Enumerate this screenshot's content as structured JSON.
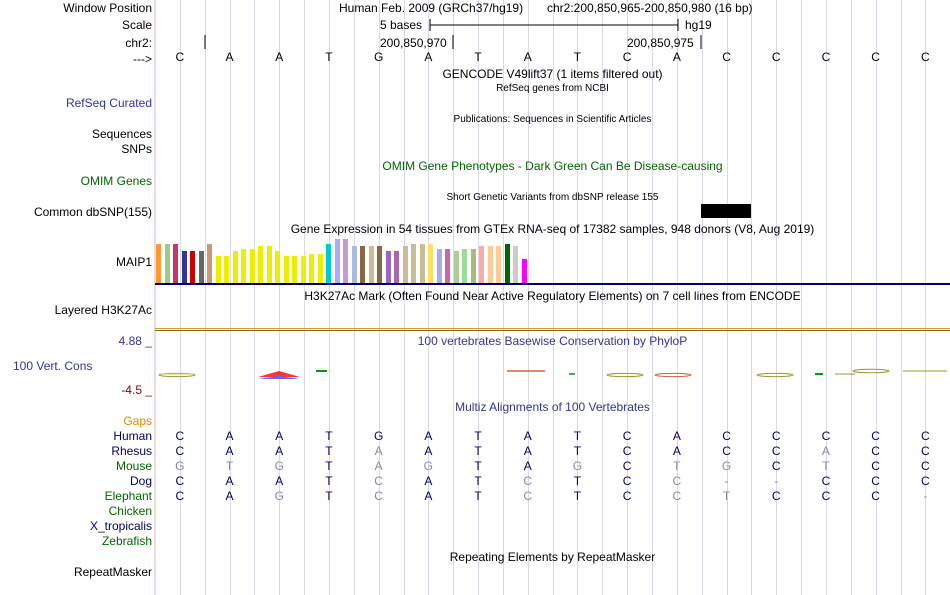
{
  "header": {
    "window_position_label": "Window Position",
    "assembly": "Human Feb. 2009 (GRCh37/hg19)",
    "position": "chr2:200,850,965-200,850,980 (16 bp)",
    "scale_label": "Scale",
    "scale_bases": "5 bases",
    "scale_db": "hg19",
    "chrom_label": "chr2:",
    "coord1": "200,850,970",
    "coord2": "200,850,975",
    "strand_label": "--->"
  },
  "reference_bases": [
    "C",
    "A",
    "A",
    "T",
    "G",
    "A",
    "T",
    "A",
    "T",
    "C",
    "A",
    "C",
    "C",
    "C",
    "C",
    "C"
  ],
  "tracks": {
    "gencode_title": "GENCODE V49lift37 (1 items filtered out)",
    "refseq_subtitle": "RefSeq genes from NCBI",
    "refseq_label": "RefSeq Curated",
    "publications_subtitle": "Publications: Sequences in Scientific Articles",
    "sequences_label": "Sequences",
    "snps_label": "SNPs",
    "omim_title": "OMIM Gene Phenotypes - Dark Green Can Be Disease-causing",
    "omim_label": "OMIM Genes",
    "dbsnp_subtitle": "Short Genetic Variants from dbSNP release 155",
    "dbsnp_label": "Common dbSNP(155)",
    "gtex_title": "Gene Expression in 54 tissues from GTEx RNA-seq of 17382 samples, 948 donors (V8, Aug 2019)",
    "gtex_gene_label": "MAIP1",
    "h3k27ac_title": "H3K27Ac Mark (Often Found Near Active Regulatory Elements) on 7 cell lines from ENCODE",
    "h3k27ac_label": "Layered H3K27Ac",
    "phylop_title": "100 vertebrates Basewise Conservation by PhyloP",
    "phylop_label": "100 Vert. Cons",
    "phylop_max": "4.88 _",
    "phylop_min": "-4.5 _",
    "multiz_title": "Multiz Alignments of 100 Vertebrates",
    "gaps_label": "Gaps",
    "repeat_title": "Repeating Elements by RepeatMasker",
    "repeat_label": "RepeatMasker"
  },
  "gtex_bar_colors": [
    "#FF9933",
    "#99CC88",
    "#CC3366",
    "#333399",
    "#CC0000",
    "#666666",
    "#CC9977",
    "#EEEE00",
    "#EEEE00",
    "#EEEE00",
    "#EEEE00",
    "#EEEE00",
    "#EEEE00",
    "#EEEE00",
    "#EEEE00",
    "#EEEE00",
    "#EEEE00",
    "#EEEE00",
    "#EEEE00",
    "#EEEE00",
    "#00CCCC",
    "#AAAAFF",
    "#CC99CC",
    "#AABBDD",
    "#886644",
    "#CCBB99",
    "#886644",
    "#9966CC",
    "#AA66AA",
    "#CCBB99",
    "#CCBB99",
    "#CCBB99",
    "#FFDD66",
    "#AAAAEE",
    "#CC66AA",
    "#ADCC99",
    "#99DD99",
    "#AABB77",
    "#FFAAAA",
    "#FFCC99",
    "#FFCC99",
    "#006600",
    "#CCCCCC",
    "#FF00FF"
  ],
  "gtex_bar_values": [
    40,
    40,
    40,
    33,
    33,
    33,
    40,
    28,
    28,
    33,
    35,
    35,
    38,
    38,
    33,
    28,
    28,
    28,
    30,
    30,
    40,
    45,
    45,
    38,
    38,
    38,
    38,
    33,
    33,
    38,
    40,
    40,
    40,
    35,
    35,
    33,
    35,
    35,
    38,
    38,
    38,
    40,
    38,
    25
  ],
  "alignments": [
    {
      "species": "Human",
      "color": "#000066",
      "bases": [
        "C",
        "A",
        "A",
        "T",
        "G",
        "A",
        "T",
        "A",
        "T",
        "C",
        "A",
        "C",
        "C",
        "C",
        "C",
        "C"
      ],
      "faint": []
    },
    {
      "species": "Rhesus",
      "color": "#000066",
      "bases": [
        "C",
        "A",
        "A",
        "T",
        "A",
        "A",
        "T",
        "A",
        "T",
        "C",
        "A",
        "C",
        "C",
        "A",
        "C",
        "C"
      ],
      "faint": [
        4,
        13
      ]
    },
    {
      "species": "Mouse",
      "color": "#006600",
      "bases": [
        "G",
        "T",
        "G",
        "T",
        "A",
        "G",
        "T",
        "A",
        "G",
        "C",
        "T",
        "G",
        "C",
        "T",
        "C",
        "C"
      ],
      "faint": [
        0,
        1,
        2,
        4,
        5,
        8,
        10,
        11,
        13
      ]
    },
    {
      "species": "Dog",
      "color": "#000066",
      "bases": [
        "C",
        "A",
        "A",
        "T",
        "C",
        "A",
        "T",
        "C",
        "T",
        "C",
        "C",
        "-",
        "-",
        "C",
        "C",
        "C"
      ],
      "faint": [
        4,
        7,
        10,
        11,
        12
      ]
    },
    {
      "species": "Elephant",
      "color": "#006600",
      "bases": [
        "C",
        "A",
        "G",
        "T",
        "C",
        "A",
        "T",
        "C",
        "T",
        "C",
        "C",
        "T",
        "C",
        "C",
        "C",
        "-"
      ],
      "faint": [
        2,
        4,
        7,
        10,
        11,
        15
      ]
    },
    {
      "species": "Chicken",
      "color": "#006600",
      "bases": [],
      "faint": []
    },
    {
      "species": "X_tropicalis",
      "color": "#000066",
      "bases": [],
      "faint": []
    },
    {
      "species": "Zebrafish",
      "color": "#006600",
      "bases": [],
      "faint": []
    }
  ],
  "colors": {
    "track_blue": "#333399",
    "track_green": "#006600",
    "gaps_orange": "#DD8800",
    "phylop_min_red": "#880000",
    "alt_base": "#8888AA"
  }
}
